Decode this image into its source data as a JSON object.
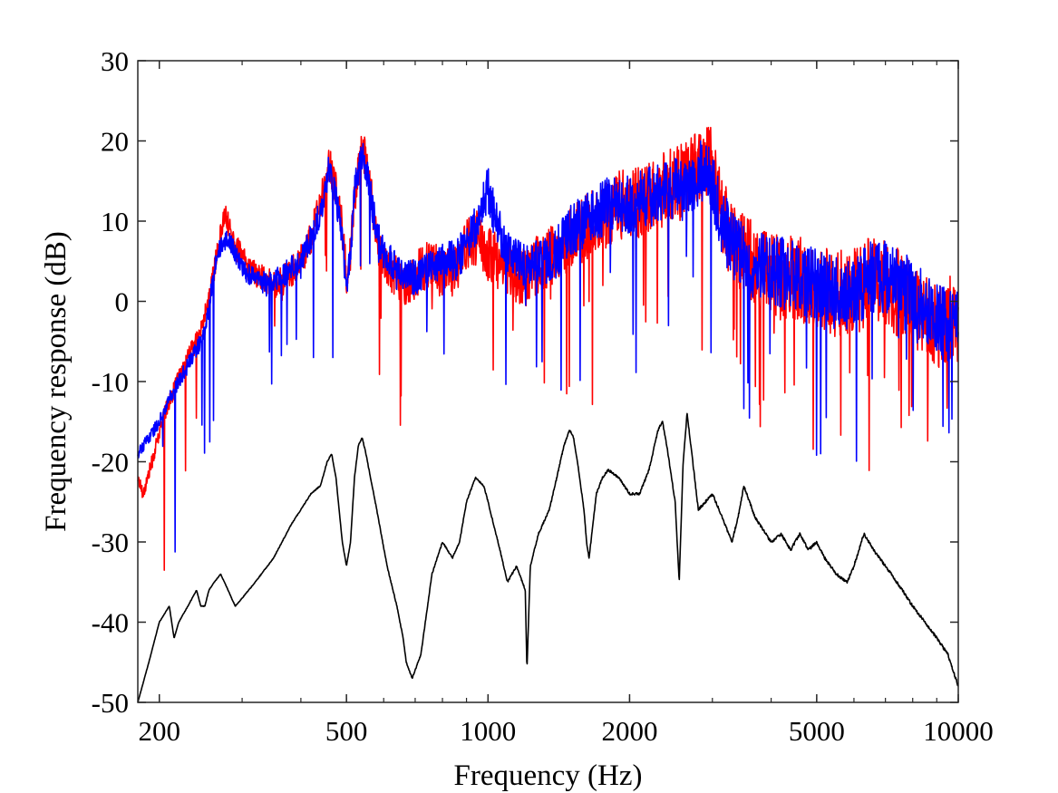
{
  "chart_data": {
    "type": "line",
    "title": "",
    "xlabel": "Frequency (Hz)",
    "ylabel": "Frequency response (dB)",
    "xscale": "log",
    "xlim": [
      180,
      10000
    ],
    "ylim": [
      -50,
      30
    ],
    "xticks": [
      200,
      500,
      1000,
      2000,
      5000,
      10000
    ],
    "xtick_labels": [
      "200",
      "500",
      "1000",
      "2000",
      "5000",
      "10000"
    ],
    "yticks": [
      -50,
      -40,
      -30,
      -20,
      -10,
      0,
      10,
      20,
      30
    ],
    "ytick_labels": [
      "-50",
      "-40",
      "-30",
      "-20",
      "-10",
      "0",
      "10",
      "20",
      "30"
    ],
    "grid": false,
    "legend": "none",
    "series": [
      {
        "name": "red",
        "color": "#ff0000",
        "noise": 11,
        "x": [
          180,
          185,
          195,
          205,
          215,
          230,
          245,
          260,
          275,
          290,
          310,
          330,
          350,
          375,
          400,
          420,
          440,
          460,
          475,
          490,
          500,
          510,
          520,
          540,
          555,
          570,
          590,
          610,
          640,
          680,
          720,
          760,
          800,
          850,
          900,
          950,
          1000,
          1100,
          1200,
          1300,
          1400,
          1500,
          1600,
          1700,
          1800,
          1900,
          2000,
          2200,
          2400,
          2600,
          2800,
          2950,
          3100,
          3300,
          3600,
          4000,
          4500,
          5000,
          5500,
          6000,
          6500,
          7000,
          7500,
          8000,
          8500,
          9000,
          9500,
          10000
        ],
        "y": [
          -22,
          -24,
          -19,
          -14,
          -11,
          -7,
          -4,
          3,
          11,
          7,
          4,
          3,
          2,
          3,
          5,
          8,
          12,
          17,
          14,
          9,
          3,
          6,
          13,
          19,
          17,
          11,
          6,
          4,
          3,
          2,
          4,
          5,
          3,
          4,
          7,
          8,
          6,
          4,
          3,
          5,
          6,
          8,
          9,
          10,
          11,
          12,
          12,
          13,
          14,
          15,
          17,
          18,
          13,
          7,
          5,
          3,
          3,
          2,
          1,
          1,
          3,
          2,
          1,
          0,
          -2,
          -3,
          -2,
          -3
        ]
      },
      {
        "name": "blue",
        "color": "#0000ff",
        "noise": 9,
        "x": [
          180,
          190,
          200,
          210,
          220,
          235,
          250,
          265,
          280,
          300,
          320,
          340,
          360,
          380,
          400,
          420,
          440,
          460,
          475,
          490,
          500,
          510,
          520,
          540,
          555,
          570,
          590,
          620,
          650,
          700,
          750,
          800,
          850,
          900,
          950,
          1000,
          1050,
          1100,
          1200,
          1300,
          1400,
          1500,
          1600,
          1700,
          1800,
          1900,
          2000,
          2200,
          2400,
          2600,
          2800,
          2950,
          3100,
          3300,
          3600,
          4000,
          4500,
          5000,
          5500,
          6000,
          6500,
          7000,
          7500,
          8000,
          8500,
          9000,
          9500,
          10000
        ],
        "y": [
          -19,
          -17,
          -15,
          -12,
          -10,
          -7,
          -4,
          6,
          8,
          4,
          3,
          2,
          3,
          4,
          5,
          8,
          11,
          17,
          13,
          8,
          1,
          6,
          14,
          18,
          16,
          11,
          7,
          5,
          3,
          3,
          4,
          5,
          5,
          7,
          10,
          14,
          9,
          6,
          4,
          5,
          6,
          9,
          10,
          11,
          12,
          12,
          12,
          13,
          14,
          14,
          16,
          17,
          11,
          7,
          5,
          4,
          3,
          2,
          1,
          1,
          3,
          3,
          2,
          1,
          -1,
          -2,
          -3,
          -3
        ]
      },
      {
        "name": "black",
        "color": "#000000",
        "noise": 0.35,
        "x": [
          180,
          190,
          200,
          210,
          215,
          220,
          230,
          240,
          245,
          250,
          255,
          262,
          270,
          280,
          290,
          300,
          320,
          350,
          380,
          420,
          440,
          455,
          465,
          475,
          490,
          500,
          510,
          520,
          530,
          540,
          550,
          580,
          610,
          640,
          660,
          670,
          690,
          720,
          760,
          800,
          840,
          870,
          900,
          940,
          980,
          1000,
          1050,
          1100,
          1150,
          1200,
          1210,
          1230,
          1280,
          1350,
          1400,
          1450,
          1490,
          1520,
          1550,
          1600,
          1620,
          1640,
          1670,
          1700,
          1750,
          1800,
          1900,
          2000,
          2100,
          2200,
          2300,
          2350,
          2400,
          2500,
          2550,
          2600,
          2650,
          2700,
          2750,
          2800,
          2900,
          3000,
          3100,
          3200,
          3300,
          3400,
          3500,
          3700,
          4000,
          4200,
          4400,
          4600,
          4800,
          5000,
          5200,
          5500,
          5800,
          6000,
          6300,
          6600,
          7000,
          7200,
          7400,
          7600,
          8000,
          8500,
          9000,
          9500,
          10000
        ],
        "y": [
          -50,
          -45,
          -40,
          -38,
          -42,
          -40,
          -38,
          -36,
          -38,
          -38,
          -36,
          -35,
          -34,
          -36,
          -38,
          -37,
          -35,
          -32,
          -28,
          -24,
          -23,
          -20,
          -19,
          -22,
          -30,
          -33,
          -30,
          -22,
          -18,
          -17,
          -19,
          -26,
          -33,
          -38,
          -42,
          -45,
          -47,
          -44,
          -34,
          -30,
          -32,
          -30,
          -25,
          -22,
          -23,
          -25,
          -30,
          -35,
          -33,
          -36,
          -46,
          -33,
          -29,
          -26,
          -22,
          -18,
          -16,
          -17,
          -20,
          -26,
          -30,
          -32,
          -28,
          -24,
          -22,
          -21,
          -22,
          -24,
          -24,
          -21,
          -16,
          -15,
          -18,
          -25,
          -35,
          -20,
          -14,
          -18,
          -22,
          -26,
          -25,
          -24,
          -26,
          -28,
          -30,
          -27,
          -23,
          -27,
          -30,
          -29,
          -31,
          -29,
          -31,
          -30,
          -32,
          -34,
          -35,
          -33,
          -29,
          -31,
          -33,
          -34,
          -35,
          -36,
          -38,
          -40,
          -42,
          -44,
          -48
        ]
      }
    ]
  }
}
